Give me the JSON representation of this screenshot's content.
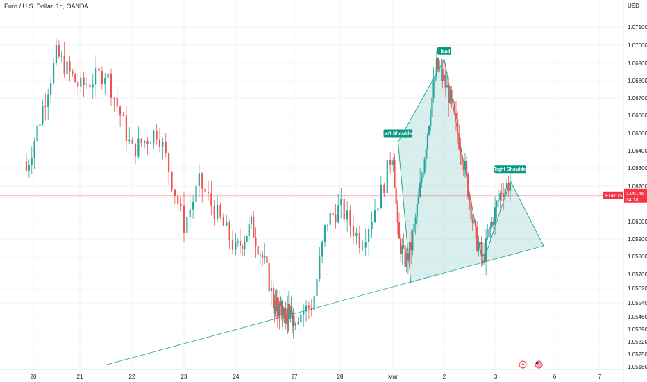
{
  "legend": {
    "title": "Euro / U.S. Dollar, 1h, OANDA"
  },
  "currency_label": "USD",
  "colors": {
    "up": "#26a69a",
    "down": "#ef5350",
    "pattern_fill": "#26a69a",
    "annotation_bg": "#089981",
    "price_line": "#f23645"
  },
  "symbol_tag": "EURUSD",
  "current_price": {
    "value": "1.06146",
    "countdown": "34:18"
  },
  "icons": [
    "lightning-icon",
    "us-flag-icon"
  ],
  "chart_data": {
    "type": "candlestick",
    "y_ticks": [
      "1.07100",
      "1.07000",
      "1.06900",
      "1.06800",
      "1.06700",
      "1.06600",
      "1.06500",
      "1.06400",
      "1.06300",
      "1.06200",
      "1.06000",
      "1.05900",
      "1.05800",
      "1.05700",
      "1.05620",
      "1.05540",
      "1.05460",
      "1.05390",
      "1.05320",
      "1.05250",
      "1.05180"
    ],
    "x_ticks": [
      "20",
      "21",
      "22",
      "23",
      "24",
      "27",
      "28",
      "Mar",
      "2",
      "3",
      "6",
      "7"
    ],
    "annotations": [
      "Left Shoulder",
      "Head",
      "Right Shoulder"
    ],
    "anchors": {
      "20": 1.0644,
      "20.5": 1.0695,
      "21": 1.0676,
      "21.5": 1.0685,
      "22": 1.064,
      "22.5": 1.0652,
      "23": 1.0598,
      "23.3": 1.0622,
      "23.8": 1.0595,
      "24": 1.0583,
      "24.4": 1.0598,
      "24.8": 1.0572,
      "25": 1.0552,
      "27": 1.0546,
      "27.4": 1.0553,
      "27.7": 1.06,
      "28": 1.0608,
      "28.4": 1.0588,
      "28.8": 1.0618,
      "29": 1.0641,
      "29.2": 1.059,
      "29.5": 1.0577,
      "29.7": 1.0585,
      "30": 1.0612,
      "30.4": 1.0657,
      "30.7": 1.0688,
      "31": 1.068,
      "31.3": 1.0665,
      "31.8": 1.063,
      "32.2": 1.0592,
      "32.5": 1.0578,
      "32.8": 1.0596,
      "33.2": 1.0618,
      "33.5": 1.0622
    },
    "pattern": [
      {
        "x": "29.7",
        "y": 1.0565
      },
      {
        "x": "29.2",
        "y": 1.0645
      },
      {
        "x": "31",
        "y": 1.0692
      },
      {
        "x": "32.5",
        "y": 1.0576
      },
      {
        "x": "33.5",
        "y": 1.0623
      },
      {
        "x": "34.5",
        "y": 1.0586
      }
    ],
    "neckline": [
      {
        "x": "21.5",
        "y": 1.0519
      },
      {
        "x": "34.5",
        "y": 1.0586
      }
    ],
    "current_price": 1.06146
  }
}
